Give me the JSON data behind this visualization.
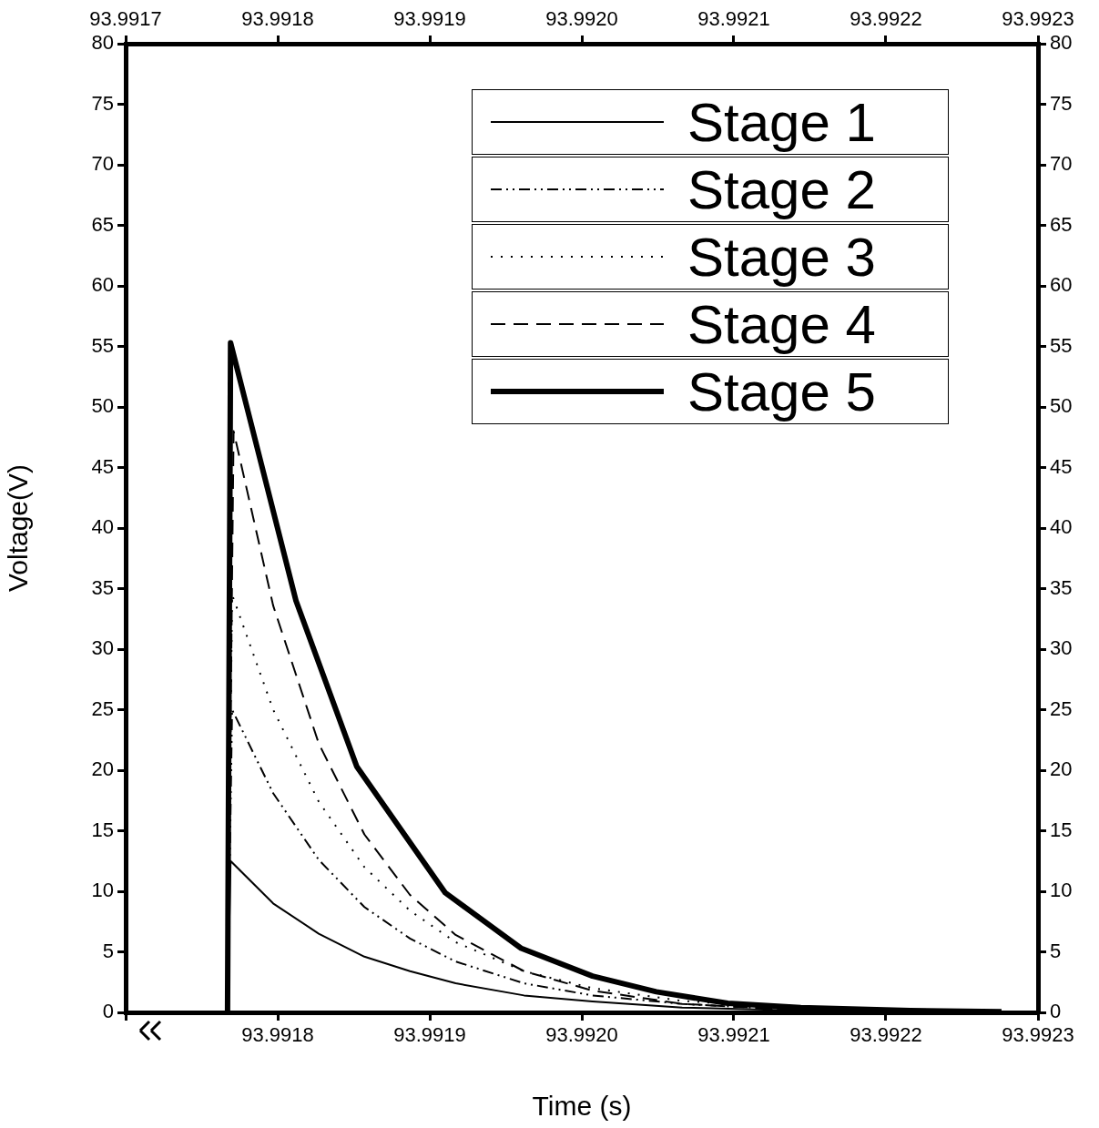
{
  "chart_data": {
    "type": "line",
    "xlabel": "Time (s)",
    "ylabel": "Voltage(V)",
    "xlim": [
      93.9917,
      93.9923
    ],
    "xticks": [
      {
        "value": 93.9917,
        "label": null
      },
      93.9918,
      93.9919,
      {
        "value": 93.992,
        "label": "93.9920"
      },
      93.9921,
      93.9922,
      93.9923
    ],
    "x2lim": [
      93.9917,
      93.9923
    ],
    "x2ticks": [
      93.9917,
      93.9918,
      93.9919,
      {
        "value": 93.992,
        "label": "93.9920"
      },
      93.9921,
      93.9922,
      93.9923
    ],
    "ylim": [
      0,
      80
    ],
    "yticks": [
      0,
      5,
      10,
      15,
      20,
      25,
      30,
      35,
      40,
      45,
      50,
      55,
      60,
      65,
      70,
      75,
      80
    ],
    "y2lim": [
      0,
      80
    ],
    "y2ticks": [
      0,
      5,
      10,
      15,
      20,
      25,
      30,
      35,
      40,
      45,
      50,
      55,
      60,
      65,
      70,
      75,
      80
    ],
    "grid": false,
    "legend": "top right",
    "marker": "none",
    "series": [
      {
        "name": "Stage 1",
        "color": "#000000",
        "line_style": "solid",
        "x": [
          93.991767,
          93.991769,
          93.991797,
          93.991827,
          93.991857,
          93.991887,
          93.991917,
          93.991962,
          93.992007,
          93.992066,
          93.992126,
          93.992216,
          93.992276
        ],
        "values": [
          0,
          12.5,
          9.0,
          6.5,
          4.6,
          3.4,
          2.4,
          1.4,
          0.9,
          0.4,
          0.2,
          0.1,
          0.05
        ]
      },
      {
        "name": "Stage 2",
        "color": "#000000",
        "line_style": "dashdot",
        "x": [
          93.991767,
          93.99177,
          93.991797,
          93.991827,
          93.991857,
          93.991887,
          93.991917,
          93.991962,
          93.992007,
          93.992066,
          93.992126,
          93.992216
        ],
        "values": [
          0,
          25,
          18.1,
          12.6,
          8.7,
          6.1,
          4.2,
          2.4,
          1.4,
          0.7,
          0.3,
          0.1
        ]
      },
      {
        "name": "Stage 3",
        "color": "#000000",
        "line_style": "dotted",
        "x": [
          93.991767,
          93.99177,
          93.991797,
          93.991827,
          93.991857,
          93.991887,
          93.991917,
          93.991962,
          93.992007,
          93.992066,
          93.992126,
          93.992216
        ],
        "values": [
          0,
          34.5,
          25.0,
          17.4,
          12.0,
          8.4,
          5.8,
          3.4,
          2.0,
          0.95,
          0.46,
          0.16
        ]
      },
      {
        "name": "Stage 4",
        "color": "#000000",
        "line_style": "dashed",
        "x": [
          93.991767,
          93.991771,
          93.991797,
          93.991827,
          93.991857,
          93.991887,
          93.991917,
          93.991962,
          93.992007,
          93.992066,
          93.992126,
          93.992216
        ],
        "values": [
          0,
          48,
          33.6,
          22.2,
          14.7,
          9.7,
          6.4,
          3.4,
          1.8,
          0.7,
          0.3,
          0.1
        ]
      },
      {
        "name": "Stage 5",
        "color": "#000000",
        "line_style": "solid",
        "x": [
          93.991767,
          93.991769,
          93.991812,
          93.991852,
          93.99191,
          93.99196,
          93.992007,
          93.992049,
          93.992096,
          93.992144,
          93.992216,
          93.992276
        ],
        "values": [
          0,
          55.3,
          34,
          20.3,
          9.9,
          5.3,
          3.0,
          1.7,
          0.75,
          0.4,
          0.15,
          0.05
        ]
      }
    ]
  }
}
